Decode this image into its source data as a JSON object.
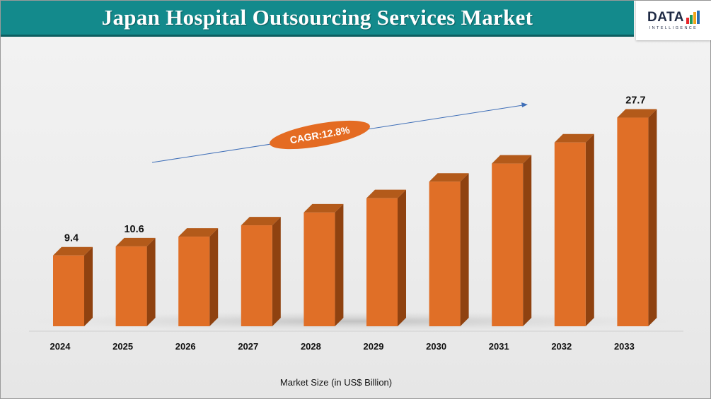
{
  "header": {
    "title": "Japan Hospital Outsourcing Services Market"
  },
  "logo": {
    "word": "DATA",
    "subtitle": "INTELLIGENCE",
    "bar_colors": [
      "#e8272c",
      "#1d9b57",
      "#f2a31b",
      "#2b6cb0"
    ]
  },
  "colors": {
    "bar_front": "#e06f27",
    "bar_side": "#8f4210",
    "bar_top": "#b35a1a",
    "badge": "#e46b22",
    "arrow": "#3f6fb8"
  },
  "chart_data": {
    "type": "bar",
    "categories": [
      "2024",
      "2025",
      "2026",
      "2027",
      "2028",
      "2029",
      "2030",
      "2031",
      "2032",
      "2033"
    ],
    "values": [
      9.4,
      10.6,
      11.9,
      13.4,
      15.1,
      17.0,
      19.2,
      21.6,
      24.4,
      27.7
    ],
    "data_labels": [
      "9.4",
      "10.6",
      "",
      "",
      "",
      "",
      "",
      "",
      "",
      "27.7"
    ],
    "xlabel": "Market Size (in US$ Billion)",
    "ylabel": "",
    "ylim": [
      0,
      28.5
    ],
    "grid": false,
    "legend": "none",
    "annotation": "CAGR:12.8%"
  }
}
